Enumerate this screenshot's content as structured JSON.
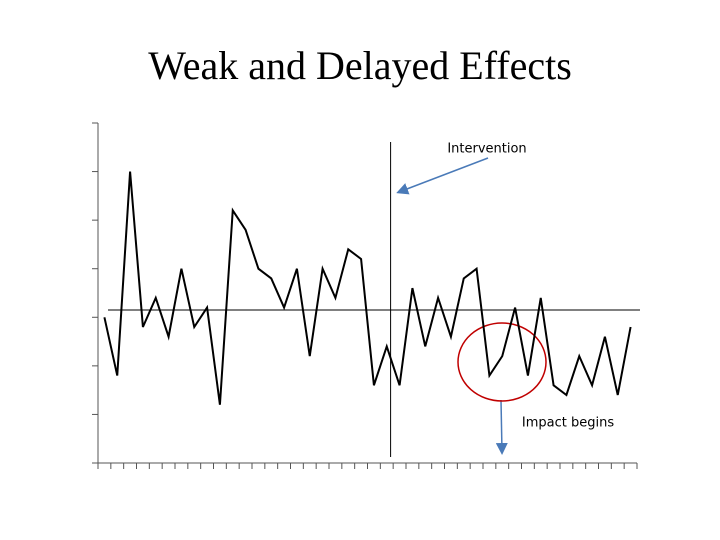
{
  "chart_data": {
    "type": "line",
    "title": "Weak and Delayed Effects",
    "annotations": [
      "Intervention",
      "Impact begins"
    ],
    "x": [
      1,
      2,
      3,
      4,
      5,
      6,
      7,
      8,
      9,
      10,
      11,
      12,
      13,
      14,
      15,
      16,
      17,
      18,
      19,
      20,
      21,
      22,
      23,
      24,
      25,
      26,
      27,
      28,
      29,
      30,
      31,
      32,
      33,
      34,
      35,
      36,
      37,
      38,
      39,
      40,
      41,
      42
    ],
    "values": [
      3.0,
      1.8,
      6.0,
      2.8,
      3.4,
      2.6,
      4.0,
      2.8,
      3.2,
      1.2,
      5.2,
      4.8,
      4.0,
      3.8,
      3.2,
      4.0,
      2.2,
      4.0,
      3.4,
      4.4,
      4.2,
      1.6,
      2.4,
      1.6,
      3.6,
      2.4,
      3.4,
      2.6,
      3.8,
      4.0,
      1.8,
      2.2,
      3.2,
      1.8,
      3.4,
      1.6,
      1.4,
      2.2,
      1.6,
      2.6,
      1.4,
      2.8
    ],
    "color": "#000000",
    "reference_line": 3.15,
    "intervention_x": 23.3,
    "xlim": [
      0.5,
      42.5
    ],
    "xticks": [
      0.5,
      1.5,
      2.5,
      3.5,
      4.5,
      5.5,
      6.5,
      7.5,
      8.5,
      9.5,
      10.5,
      11.5,
      12.5,
      13.5,
      14.5,
      15.5,
      16.5,
      17.5,
      18.5,
      19.5,
      20.5,
      21.5,
      22.5,
      23.5,
      24.5,
      25.5,
      26.5,
      27.5,
      28.5,
      29.5,
      30.5,
      31.5,
      32.5,
      33.5,
      34.5,
      35.5,
      36.5,
      37.5,
      38.5,
      39.5,
      40.5,
      41.5,
      42.5
    ],
    "ylim": [
      0,
      7
    ],
    "yticks": [
      0,
      1,
      2,
      3,
      4,
      5,
      6,
      7
    ]
  }
}
